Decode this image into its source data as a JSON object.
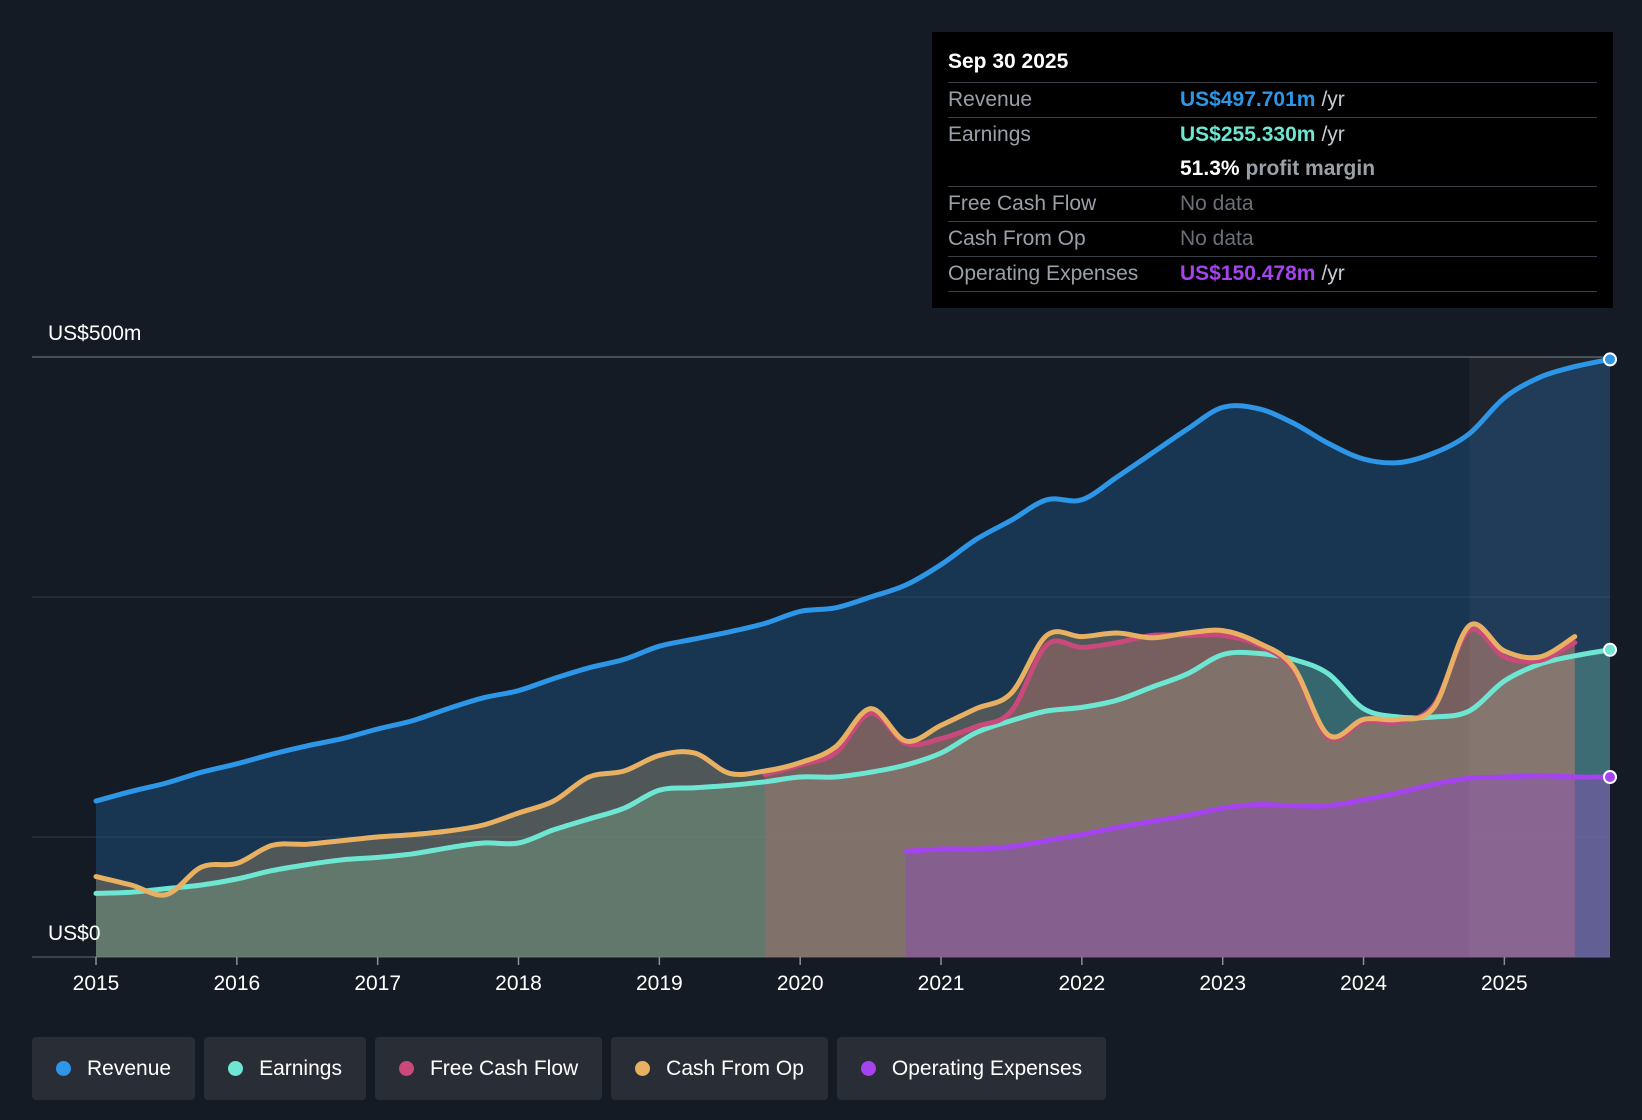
{
  "tooltip": {
    "date": "Sep 30 2025",
    "revenue_label": "Revenue",
    "revenue_value": "US$497.701m",
    "earnings_label": "Earnings",
    "earnings_value": "US$255.330m",
    "margin_value": "51.3%",
    "margin_label": "profit margin",
    "fcf_label": "Free Cash Flow",
    "fcf_value": "No data",
    "cfo_label": "Cash From Op",
    "cfo_value": "No data",
    "opex_label": "Operating Expenses",
    "opex_value": "US$150.478m",
    "unit": "/yr"
  },
  "legend": [
    {
      "label": "Revenue",
      "color": "#2d96e6"
    },
    {
      "label": "Earnings",
      "color": "#6ee6d2"
    },
    {
      "label": "Free Cash Flow",
      "color": "#c8497a"
    },
    {
      "label": "Cash From Op",
      "color": "#e8b062"
    },
    {
      "label": "Operating Expenses",
      "color": "#a543ee"
    }
  ],
  "chart_data": {
    "type": "area",
    "title": "",
    "ylabel_top": "US$500m",
    "ylabel_bottom": "US$0",
    "ylim": [
      0,
      500
    ],
    "xlim": [
      2015.0,
      2025.75
    ],
    "x_ticks": [
      "2015",
      "2016",
      "2017",
      "2018",
      "2019",
      "2020",
      "2021",
      "2022",
      "2023",
      "2024",
      "2025"
    ],
    "series": [
      {
        "name": "Revenue",
        "color": "#2d96e6",
        "x": [
          2015.0,
          2015.25,
          2015.5,
          2015.75,
          2016.0,
          2016.25,
          2016.5,
          2016.75,
          2017.0,
          2017.25,
          2017.5,
          2017.75,
          2018.0,
          2018.25,
          2018.5,
          2018.75,
          2019.0,
          2019.25,
          2019.5,
          2019.75,
          2020.0,
          2020.25,
          2020.5,
          2020.75,
          2021.0,
          2021.25,
          2021.5,
          2021.75,
          2022.0,
          2022.25,
          2022.5,
          2022.75,
          2023.0,
          2023.25,
          2023.5,
          2023.75,
          2024.0,
          2024.25,
          2024.5,
          2024.75,
          2025.0,
          2025.25,
          2025.5,
          2025.75
        ],
        "values": [
          130,
          138,
          145,
          154,
          161,
          169,
          176,
          182,
          190,
          197,
          207,
          216,
          222,
          232,
          241,
          248,
          259,
          265,
          271,
          278,
          288,
          291,
          300,
          310,
          327,
          348,
          364,
          381,
          381,
          400,
          420,
          440,
          458,
          457,
          445,
          428,
          415,
          412,
          420,
          436,
          466,
          483,
          492,
          498
        ]
      },
      {
        "name": "Earnings",
        "color": "#6ee6d2",
        "x": [
          2015.0,
          2015.25,
          2015.5,
          2015.75,
          2016.0,
          2016.25,
          2016.5,
          2016.75,
          2017.0,
          2017.25,
          2017.5,
          2017.75,
          2018.0,
          2018.25,
          2018.5,
          2018.75,
          2019.0,
          2019.25,
          2019.5,
          2019.75,
          2020.0,
          2020.25,
          2020.5,
          2020.75,
          2021.0,
          2021.25,
          2021.5,
          2021.75,
          2022.0,
          2022.25,
          2022.5,
          2022.75,
          2023.0,
          2023.25,
          2023.5,
          2023.75,
          2024.0,
          2024.25,
          2024.5,
          2024.75,
          2025.0,
          2025.25,
          2025.5,
          2025.75
        ],
        "values": [
          53,
          54,
          57,
          60,
          65,
          72,
          77,
          81,
          83,
          86,
          91,
          95,
          95,
          106,
          115,
          124,
          139,
          141,
          143,
          146,
          150,
          150,
          154,
          160,
          170,
          187,
          197,
          205,
          208,
          214,
          225,
          236,
          252,
          253,
          248,
          236,
          207,
          200,
          200,
          205,
          230,
          244,
          251,
          256
        ]
      },
      {
        "name": "Free Cash Flow",
        "color": "#c8497a",
        "x": [
          2019.75,
          2020.0,
          2020.25,
          2020.5,
          2020.75,
          2021.0,
          2021.25,
          2021.5,
          2021.75,
          2022.0,
          2022.25,
          2022.5,
          2022.75,
          2023.0,
          2023.25,
          2023.5,
          2023.75,
          2024.0,
          2024.25,
          2024.5,
          2024.75,
          2025.0,
          2025.25,
          2025.5
        ],
        "values": [
          152,
          160,
          170,
          203,
          178,
          182,
          192,
          205,
          260,
          258,
          262,
          268,
          268,
          268,
          260,
          240,
          183,
          196,
          196,
          210,
          272,
          250,
          247,
          262
        ]
      },
      {
        "name": "Cash From Op",
        "color": "#e8b062",
        "x": [
          2015.0,
          2015.25,
          2015.5,
          2015.75,
          2016.0,
          2016.25,
          2016.5,
          2016.75,
          2017.0,
          2017.25,
          2017.5,
          2017.75,
          2018.0,
          2018.25,
          2018.5,
          2018.75,
          2019.0,
          2019.25,
          2019.5,
          2019.75,
          2020.0,
          2020.25,
          2020.5,
          2020.75,
          2021.0,
          2021.25,
          2021.5,
          2021.75,
          2022.0,
          2022.25,
          2022.5,
          2022.75,
          2023.0,
          2023.25,
          2023.5,
          2023.75,
          2024.0,
          2024.25,
          2024.5,
          2024.75,
          2025.0,
          2025.25,
          2025.5
        ],
        "values": [
          67,
          60,
          52,
          75,
          78,
          93,
          94,
          97,
          100,
          102,
          105,
          110,
          120,
          130,
          150,
          155,
          168,
          170,
          153,
          155,
          162,
          175,
          207,
          180,
          193,
          207,
          220,
          268,
          267,
          270,
          266,
          270,
          272,
          262,
          242,
          185,
          198,
          198,
          208,
          276,
          255,
          250,
          267
        ]
      },
      {
        "name": "Operating Expenses",
        "color": "#a543ee",
        "x": [
          2020.75,
          2021.0,
          2021.25,
          2021.5,
          2021.75,
          2022.0,
          2022.25,
          2022.5,
          2022.75,
          2023.0,
          2023.25,
          2023.5,
          2023.75,
          2024.0,
          2024.25,
          2024.5,
          2024.75,
          2025.0,
          2025.25,
          2025.5,
          2025.75
        ],
        "values": [
          88,
          90,
          90,
          92,
          97,
          102,
          108,
          113,
          118,
          124,
          127,
          126,
          126,
          131,
          137,
          144,
          149,
          150,
          151,
          150,
          150
        ]
      }
    ]
  }
}
